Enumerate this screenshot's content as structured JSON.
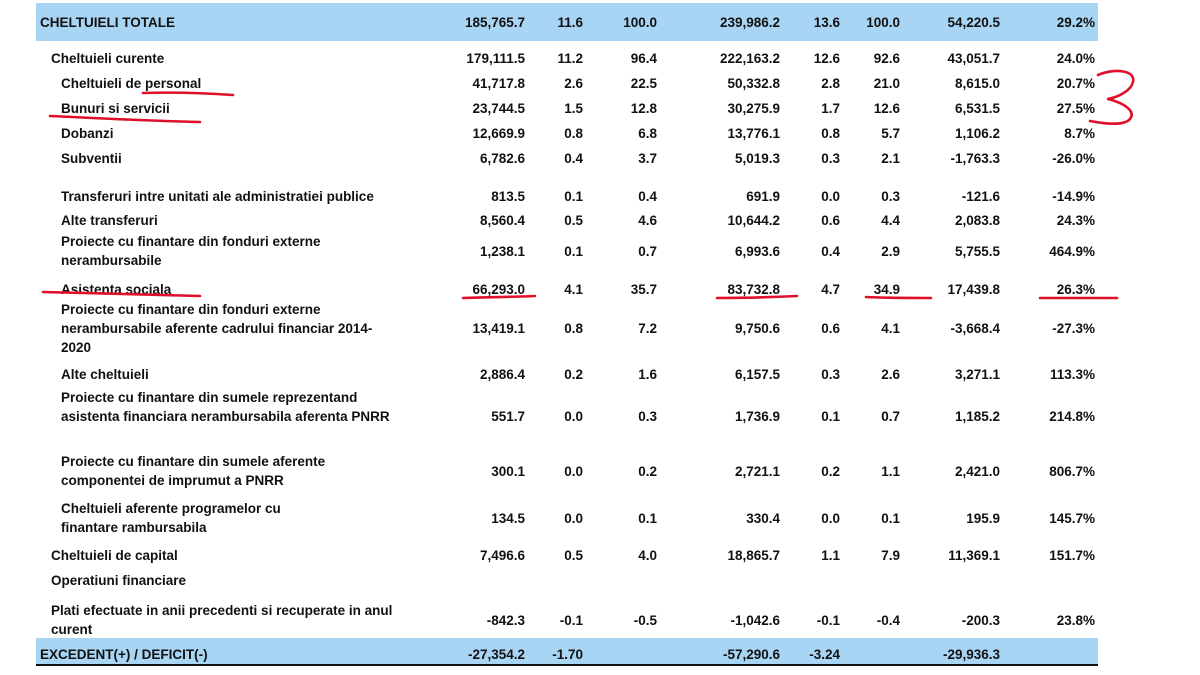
{
  "rows": [
    {
      "label": "CHELTUIELI TOTALE",
      "values": [
        "185,765.7",
        "11.6",
        "100.0",
        "239,986.2",
        "13.6",
        "100.0",
        "54,220.5",
        "29.2%"
      ]
    },
    {
      "label": "Cheltuieli curente",
      "values": [
        "179,111.5",
        "11.2",
        "96.4",
        "222,163.2",
        "12.6",
        "92.6",
        "43,051.7",
        "24.0%"
      ]
    },
    {
      "label": "Cheltuieli de personal",
      "values": [
        "41,717.8",
        "2.6",
        "22.5",
        "50,332.8",
        "2.8",
        "21.0",
        "8,615.0",
        "20.7%"
      ]
    },
    {
      "label": "Bunuri si servicii",
      "values": [
        "23,744.5",
        "1.5",
        "12.8",
        "30,275.9",
        "1.7",
        "12.6",
        "6,531.5",
        "27.5%"
      ]
    },
    {
      "label": "Dobanzi",
      "values": [
        "12,669.9",
        "0.8",
        "6.8",
        "13,776.1",
        "0.8",
        "5.7",
        "1,106.2",
        "8.7%"
      ]
    },
    {
      "label": "Subventii",
      "values": [
        "6,782.6",
        "0.4",
        "3.7",
        "5,019.3",
        "0.3",
        "2.1",
        "-1,763.3",
        "-26.0%"
      ]
    },
    {
      "label": "Transferuri intre unitati ale administratiei publice",
      "values": [
        "813.5",
        "0.1",
        "0.4",
        "691.9",
        "0.0",
        "0.3",
        "-121.6",
        "-14.9%"
      ]
    },
    {
      "label": "Alte transferuri",
      "values": [
        "8,560.4",
        "0.5",
        "4.6",
        "10,644.2",
        "0.6",
        "4.4",
        "2,083.8",
        "24.3%"
      ]
    },
    {
      "label": "Proiecte cu finantare din fonduri externe nerambursabile",
      "values": [
        "1,238.1",
        "0.1",
        "0.7",
        "6,993.6",
        "0.4",
        "2.9",
        "5,755.5",
        "464.9%"
      ]
    },
    {
      "label": "Asistenta sociala",
      "values": [
        "66,293.0",
        "4.1",
        "35.7",
        "83,732.8",
        "4.7",
        "34.9",
        "17,439.8",
        "26.3%"
      ]
    },
    {
      "label": "Proiecte cu finantare din fonduri externe nerambursabile aferente cadrului financiar 2014-2020",
      "values": [
        "13,419.1",
        "0.8",
        "7.2",
        "9,750.6",
        "0.6",
        "4.1",
        "-3,668.4",
        "-27.3%"
      ]
    },
    {
      "label": "Alte cheltuieli",
      "values": [
        "2,886.4",
        "0.2",
        "1.6",
        "6,157.5",
        "0.3",
        "2.6",
        "3,271.1",
        "113.3%"
      ]
    },
    {
      "label": "Proiecte cu finantare din sumele reprezentand asistenta financiara nerambursabila aferenta PNRR",
      "values": [
        "551.7",
        "0.0",
        "0.3",
        "1,736.9",
        "0.1",
        "0.7",
        "1,185.2",
        "214.8%"
      ]
    },
    {
      "label": "Proiecte cu finantare din sumele aferente componentei de imprumut a PNRR",
      "values": [
        "300.1",
        "0.0",
        "0.2",
        "2,721.1",
        "0.2",
        "1.1",
        "2,421.0",
        "806.7%"
      ]
    },
    {
      "label": "Cheltuieli aferente programelor cu finantare rambursabila",
      "values": [
        "134.5",
        "0.0",
        "0.1",
        "330.4",
        "0.0",
        "0.1",
        "195.9",
        "145.7%"
      ]
    },
    {
      "label": "Cheltuieli de capital",
      "values": [
        "7,496.6",
        "0.5",
        "4.0",
        "18,865.7",
        "1.1",
        "7.9",
        "11,369.1",
        "151.7%"
      ]
    },
    {
      "label": "Operatiuni financiare",
      "values": [
        "",
        "",
        "",
        "",
        "",
        "",
        "",
        ""
      ]
    },
    {
      "label": "Plati efectuate in anii precedenti si recuperate in anul curent",
      "values": [
        "-842.3",
        "-0.1",
        "-0.5",
        "-1,042.6",
        "-0.1",
        "-0.4",
        "-200.3",
        "23.8%"
      ]
    },
    {
      "label": "EXCEDENT(+) / DEFICIT(-)",
      "values": [
        "-27,354.2",
        "-1.70",
        "",
        "-57,290.6",
        "-3.24",
        "",
        "-29,936.3",
        ""
      ]
    }
  ],
  "annotations": {
    "handwritten_mark": "3",
    "ink_color": "#e0102a"
  },
  "colors": {
    "band": "#a9d5f5",
    "text": "#111111"
  }
}
